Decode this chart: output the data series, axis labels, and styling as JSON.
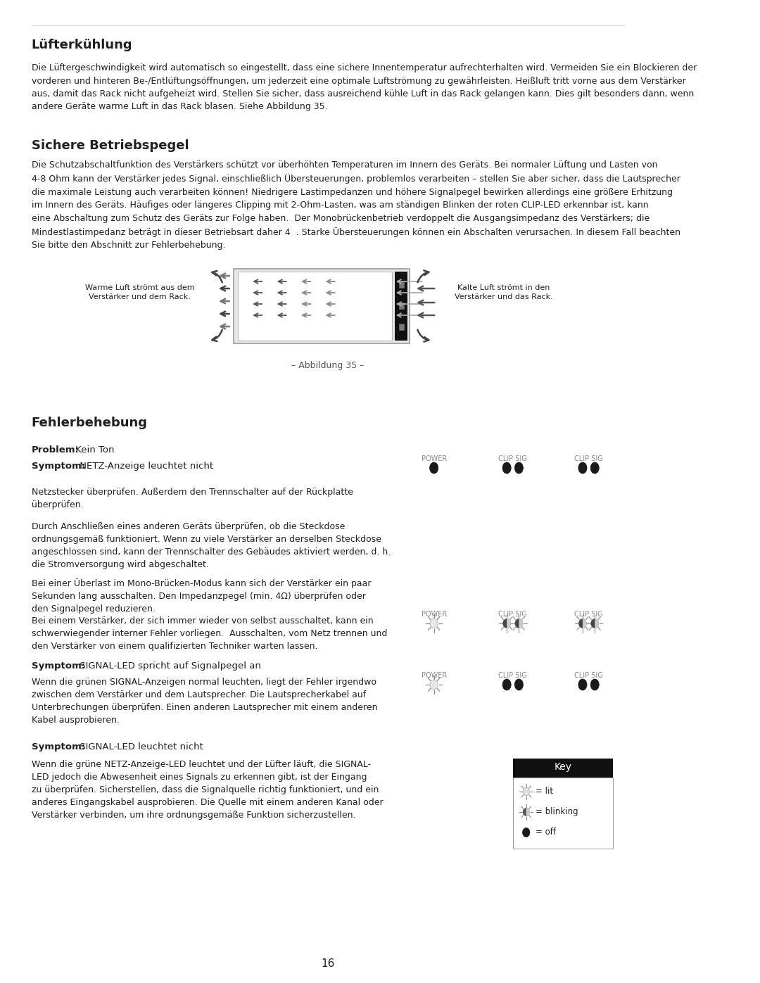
{
  "page_num": "16",
  "bg_color": "#ffffff",
  "text_color": "#231f20",
  "heading_color": "#231f20",
  "link_color": "#4a7fb5",
  "section1_title": "Lüfterkühlung",
  "section1_body": "Die Lüftergeschwindigkeit wird automatisch so eingestellt, dass eine sichere Innentemperatur aufrechterhalten wird. Vermeiden Sie ein Blockieren der\nvorderen und hinteren Be-/Entlüftungsöffnungen, um jederzeit eine optimale Luftströmung zu gewährleisten. Heißluft tritt vorne aus dem Verstärker\naus, damit das Rack nicht aufgeheizt wird. Stellen Sie sicher, dass ausreichend kühle Luft in das Rack gelangen kann. Dies gilt besonders dann, wenn\nandere Geräte warme Luft in das Rack blasen. Siehe Abbildung 35.",
  "section2_title": "Sichere Betriebspegel",
  "section2_body": "Die Schutzabschaltfunktion des Verstärkers schützt vor überhöhten Temperaturen im Innern des Geräts. Bei normaler Lüftung und Lasten von\n4-8 Ohm kann der Verstärker jedes Signal, einschließlich Übersteuerungen, problemlos verarbeiten – stellen Sie aber sicher, dass die Lautsprecher\ndie maximale Leistung auch verarbeiten können! Niedrigere Lastimpedanzen und höhere Signalpegel bewirken allerdings eine größere Erhitzung\nim Innern des Geräts. Häufiges oder längeres Clipping mit 2-Ohm-Lasten, was am ständigen Blinken der roten CLIP-LED erkennbar ist, kann\neine Abschaltung zum Schutz des Geräts zur Folge haben.  Der Monobrückenbetrieb verdoppelt die Ausgangsimpedanz des Verstärkers; die\nMindestlastimpedanz beträgt in dieser Betriebsart daher 4  . Starke Übersteuerungen können ein Abschalten verursachen. In diesem Fall beachten\nSie bitte den Abschnitt zur Fehlerbehebung.",
  "caption": "– Abbildung 35 –",
  "left_label": "Warme Luft strömt aus dem\nVerstärker und dem Rack.",
  "right_label": "Kalte Luft strömt in den\nVerstärker und das Rack.",
  "section3_title": "Fehlerbehebung",
  "problem1_label": "Problem:",
  "problem1_text": " Kein Ton",
  "symptom1_label": "Symptom:",
  "symptom1_text": " NETZ-Anzeige leuchtet nicht",
  "symptom1_body1": "Netzstecker überprüfen. Außerdem den Trennschalter auf der Rückplatte\nüberprüfen.",
  "symptom1_body2": "Durch Anschließen eines anderen Geräts überprüfen, ob die Steckdose\nordnungsgemäß funktioniert. Wenn zu viele Verstärker an derselben Steckdose\nangeschlossen sind, kann der Trennschalter des Gebäudes aktiviert werden, d. h.\ndie Stromversorgung wird abgeschaltet.",
  "symptom1_body3": "Bei einer Überlast im Mono-Brücken-Modus kann sich der Verstärker ein paar\nSekunden lang ausschalten. Den Impedanzpegel (min. 4Ω) überprüfen oder\nden Signalpegel reduzieren.",
  "symptom2_body": "Bei einem Verstärker, der sich immer wieder von selbst ausschaltet, kann ein\nschwerwiegender interner Fehler vorliegen.  Ausschalten, vom Netz trennen und\nden Verstärker von einem qualifizierten Techniker warten lassen.",
  "symptom3_label": "Symptom:",
  "symptom3_text": " SIGNAL-LED spricht auf Signalpegel an",
  "symptom3_body": "Wenn die grünen SIGNAL-Anzeigen normal leuchten, liegt der Fehler irgendwo\nzwischen dem Verstärker und dem Lautsprecher. Die Lautsprecherkabel auf\nUnterbrechungen überprüfen. Einen anderen Lautsprecher mit einem anderen\nKabel ausprobieren.",
  "symptom4_label": "Symptom:",
  "symptom4_text": " SIGNAL-LED leuchtet nicht",
  "symptom4_body": "Wenn die grüne NETZ-Anzeige-LED leuchtet und der Lüfter läuft, die SIGNAL-\nLED jedoch die Abwesenheit eines Signals zu erkennen gibt, ist der Eingang\nzu überprüfen. Sicherstellen, dass die Signalquelle richtig funktioniert, und ein\nanderes Eingangskabel ausprobieren. Die Quelle mit einem anderen Kanal oder\nVerstärker verbinden, um ihre ordnungsgemäße Funktion sicherzustellen.",
  "key_title": "Key",
  "key_lit": "= lit",
  "key_blinking": "= blinking",
  "key_off": "= off"
}
